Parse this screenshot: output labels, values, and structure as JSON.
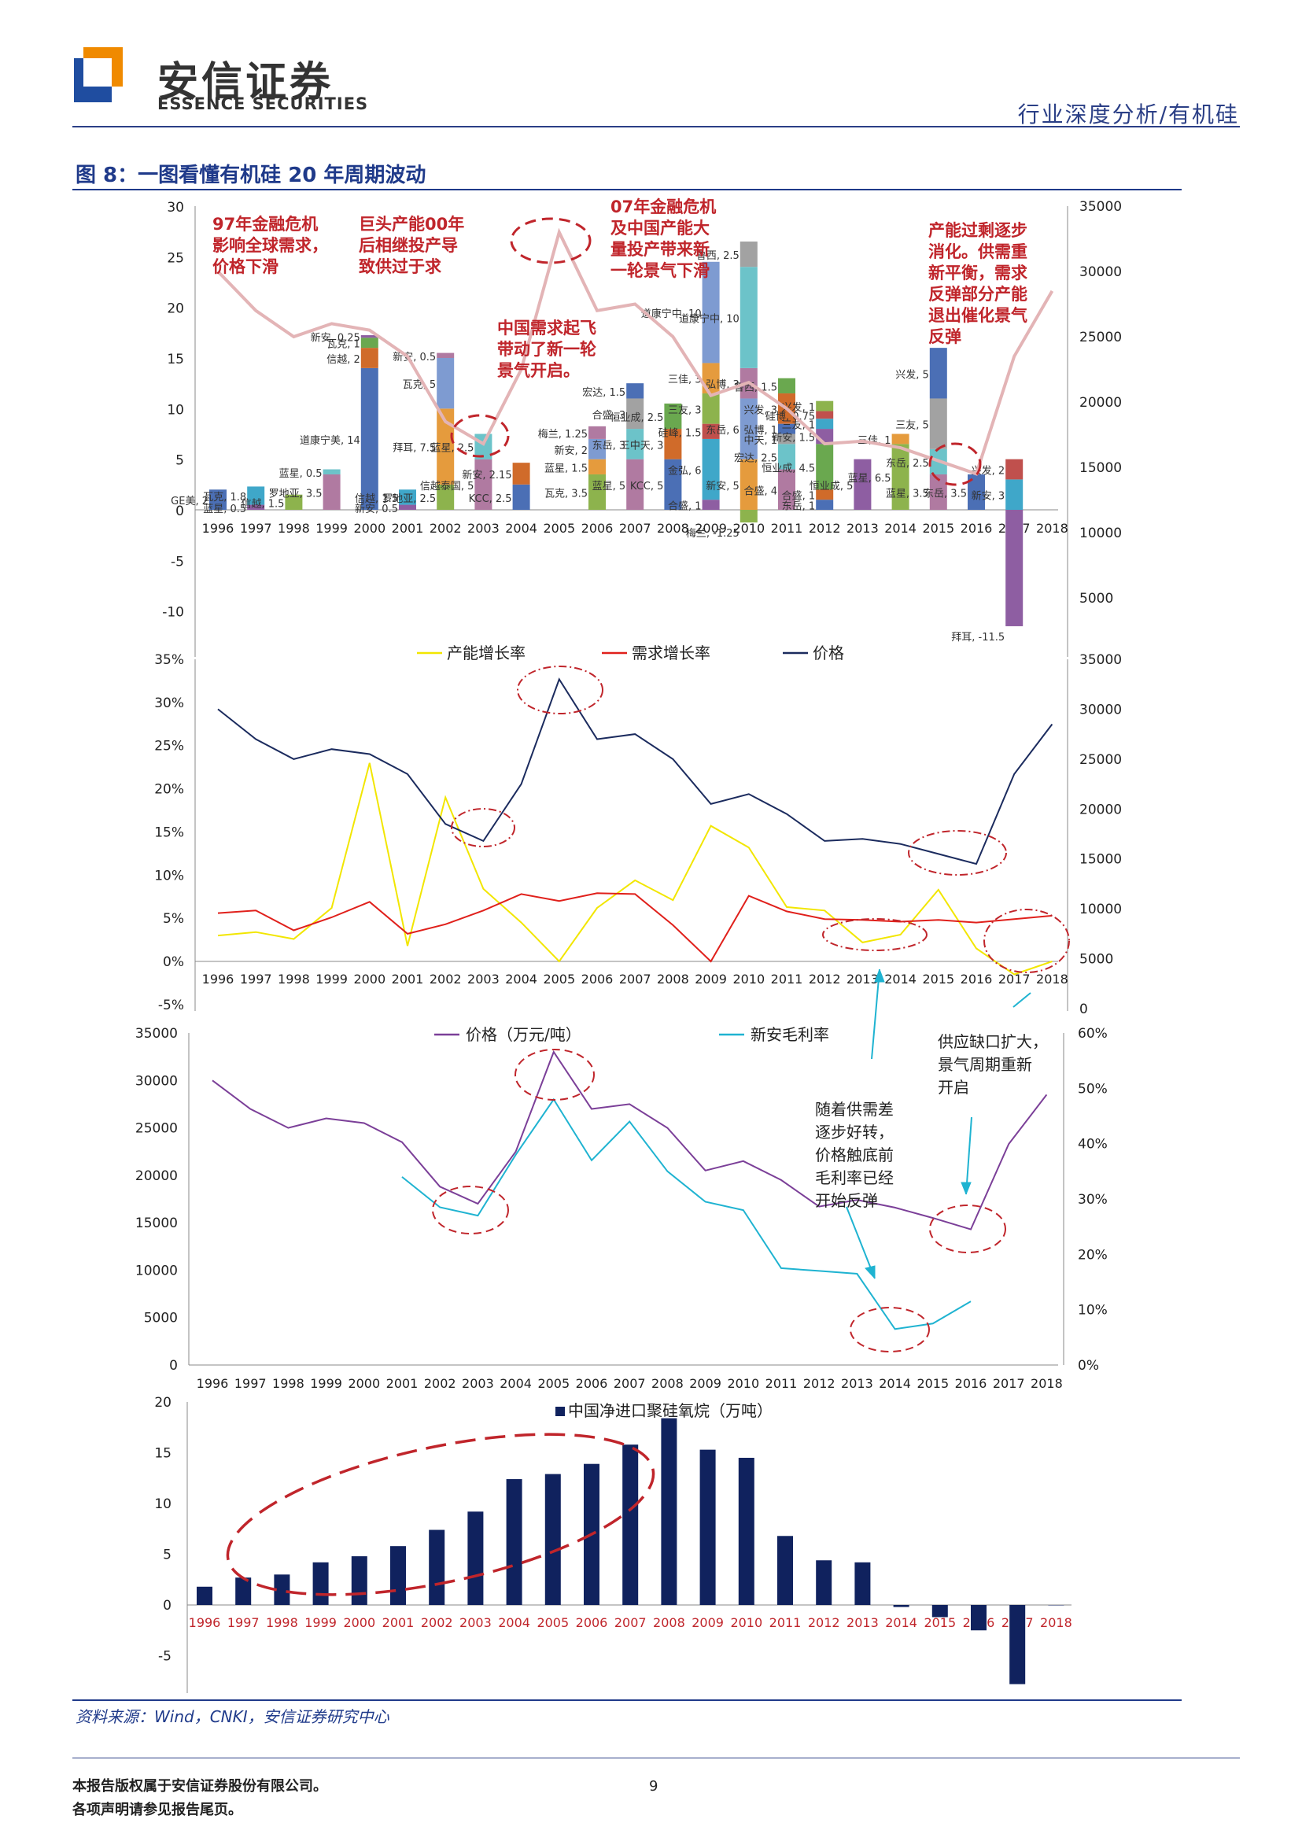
{
  "header": {
    "brand_cn": "安信证券",
    "brand_en": "ESSENCE SECURITIES",
    "category": "行业深度分析/有机硅",
    "colors": {
      "brand_blue": "#2b3f86",
      "brand_orange": "#f08a00",
      "accent_red": "#c0252b"
    }
  },
  "figure": {
    "title": "图 8：一图看懂有机硅 20 年周期波动",
    "source": "资料来源：Wind，CNKI，安信证券研究中心"
  },
  "annotations": {
    "a1": "97年金融危机\n影响全球需求，\n价格下滑",
    "a2": "巨头产能00年\n后相继投产导\n致供过于求",
    "a3": "中国需求起飞\n带动了新一轮\n景气开启。",
    "a4": "07年金融危机\n及中国产能大\n量投产带来新\n一轮景气下滑",
    "a5": "产能过剩逐步\n消化。供需重\n新平衡，需求\n反弹部分产能\n退出催化景气\n反弹",
    "n1": "随着供需差\n逐步好转，\n价格触底前\n毛利率已经\n开始反弹",
    "n2": "供应缺口扩大，\n景气周期重新\n开启"
  },
  "chart_data": [
    {
      "type": "bar",
      "stacked": true,
      "years": [
        "1996",
        "1997",
        "1998",
        "1999",
        "2000",
        "2001",
        "2002",
        "2003",
        "2004",
        "2005",
        "2006",
        "2007",
        "2008",
        "2009",
        "2010",
        "2011",
        "2012",
        "2013",
        "2014",
        "2015",
        "2016",
        "2017",
        "2018"
      ],
      "y_left_ticks": [
        "30",
        "25",
        "20",
        "15",
        "10",
        "5",
        "0",
        "-5",
        "-10"
      ],
      "y_right_ticks": [
        "35000",
        "30000",
        "25000",
        "20000",
        "15000",
        "10000",
        "5000"
      ],
      "y_left_range": [
        -11.5,
        30
      ],
      "y_right_range": [
        0,
        35000
      ],
      "price_line": [
        30000,
        27000,
        25000,
        26000,
        25500,
        23500,
        18500,
        16800,
        22500,
        33000,
        27000,
        27500,
        25000,
        20500,
        21500,
        19500,
        16800,
        17000,
        16500,
        15500,
        14500,
        23500,
        28500
      ],
      "stacks": [
        {
          "year": "1996",
          "parts": [
            {
              "label": "GE美, 2",
              "value": 2
            }
          ]
        },
        {
          "year": "1997",
          "parts": [
            {
              "label": "蓝星, 0.5",
              "value": 0.5
            },
            {
              "label": "瓦克, 1.8",
              "value": 1.8
            }
          ]
        },
        {
          "year": "1998",
          "parts": [
            {
              "label": "信越, 1.5",
              "value": 1.5
            }
          ]
        },
        {
          "year": "1999",
          "parts": [
            {
              "label": "罗地亚, 3.5",
              "value": 3.5
            },
            {
              "label": "蓝星, 0.5",
              "value": 0.5
            }
          ]
        },
        {
          "year": "2000",
          "parts": [
            {
              "label": "道康宁美, 14",
              "value": 14
            },
            {
              "label": "信越, 2",
              "value": 2
            },
            {
              "label": "瓦克, 1",
              "value": 1
            },
            {
              "label": "新安, 0.25",
              "value": 0.25
            }
          ]
        },
        {
          "year": "2001",
          "parts": [
            {
              "label": "新安, 0.5",
              "value": 0.5
            },
            {
              "label": "信越, 1.5",
              "value": 1.5
            }
          ]
        },
        {
          "year": "2002",
          "parts": [
            {
              "label": "罗地亚, 2.5",
              "value": 2.5
            },
            {
              "label": "拜耳, 7.5",
              "value": 7.5
            },
            {
              "label": "瓦克, 5",
              "value": 5
            },
            {
              "label": "新安, 0.5",
              "value": 0.5
            }
          ]
        },
        {
          "year": "2003",
          "parts": [
            {
              "label": "信越泰国, 5",
              "value": 5
            },
            {
              "label": "蓝星, 2.5",
              "value": 2.5
            }
          ]
        },
        {
          "year": "2004",
          "parts": [
            {
              "label": "KCC, 2.5",
              "value": 2.5
            },
            {
              "label": "新安, 2.15",
              "value": 2.15
            }
          ]
        },
        {
          "year": "2005",
          "parts": []
        },
        {
          "year": "2006",
          "parts": [
            {
              "label": "瓦克, 3.5",
              "value": 3.5
            },
            {
              "label": "蓝星, 1.5",
              "value": 1.5
            },
            {
              "label": "新安, 2",
              "value": 2
            },
            {
              "label": "梅兰, 1.25",
              "value": 1.25
            }
          ]
        },
        {
          "year": "2007",
          "parts": [
            {
              "label": "蓝星, 5",
              "value": 5
            },
            {
              "label": "东岳, 3",
              "value": 3
            },
            {
              "label": "合盛, 3",
              "value": 3
            },
            {
              "label": "宏达, 1.5",
              "value": 1.5
            }
          ]
        },
        {
          "year": "2008",
          "parts": [
            {
              "label": "KCC, 5",
              "value": 5
            },
            {
              "label": "三中天, 3",
              "value": 3
            },
            {
              "label": "恒业成, 2.5",
              "value": 2.5
            }
          ]
        },
        {
          "year": "2009",
          "parts": [
            {
              "label": "合盛, 1",
              "value": 1
            },
            {
              "label": "金弘, 6",
              "value": 6
            },
            {
              "label": "硅峰, 1.5",
              "value": 1.5
            },
            {
              "label": "三友, 3",
              "value": 3
            },
            {
              "label": "三佳, 3",
              "value": 3
            },
            {
              "label": "道康宁中, 10",
              "value": 10
            }
          ]
        },
        {
          "year": "2010",
          "parts": [
            {
              "label": "梅兰, -1.25",
              "value": -1.25
            },
            {
              "label": "新安, 5",
              "value": 5
            },
            {
              "label": "东岳, 6",
              "value": 6
            },
            {
              "label": "弘博, 3",
              "value": 3
            },
            {
              "label": "道康宁中, 10",
              "value": 10
            },
            {
              "label": "鲁西, 2.5",
              "value": 2.5
            }
          ]
        },
        {
          "year": "2011",
          "parts": [
            {
              "label": "合盛, 4",
              "value": 4
            },
            {
              "label": "宏达, 2.5",
              "value": 2.5
            },
            {
              "label": "中天, 1",
              "value": 1
            },
            {
              "label": "弘博, 1",
              "value": 1
            },
            {
              "label": "兴发, 3",
              "value": 3
            },
            {
              "label": "鲁西, 1.5",
              "value": 1.5
            }
          ]
        },
        {
          "year": "2012",
          "parts": [
            {
              "label": "东岳, 1",
              "value": 1
            },
            {
              "label": "合盛, 1",
              "value": 1
            },
            {
              "label": "恒业成, 4.5",
              "value": 4.5
            },
            {
              "label": "新安, 1.5",
              "value": 1.5
            },
            {
              "label": "三友, 1",
              "value": 1
            },
            {
              "label": "硅博, 0.75",
              "value": 0.75
            },
            {
              "label": "兴发, 1",
              "value": 1
            }
          ]
        },
        {
          "year": "2013",
          "parts": [
            {
              "label": "恒业成, 5",
              "value": 5
            }
          ]
        },
        {
          "year": "2014",
          "parts": [
            {
              "label": "蓝星, 6.5",
              "value": 6.5
            },
            {
              "label": "三佳, 1",
              "value": 1
            }
          ]
        },
        {
          "year": "2015",
          "parts": [
            {
              "label": "蓝星, 3.5",
              "value": 3.5
            },
            {
              "label": "东岳, 2.5",
              "value": 2.5
            },
            {
              "label": "三友, 5",
              "value": 5
            },
            {
              "label": "兴发, 5",
              "value": 5
            }
          ]
        },
        {
          "year": "2016",
          "parts": [
            {
              "label": "东岳, 3.5",
              "value": 3.5
            }
          ]
        },
        {
          "year": "2017",
          "parts": [
            {
              "label": "拜耳, -11.5",
              "value": -11.5
            },
            {
              "label": "新安, 3",
              "value": 3
            },
            {
              "label": "兴发, 2",
              "value": 2
            }
          ]
        },
        {
          "year": "2018",
          "parts": []
        }
      ]
    },
    {
      "type": "line",
      "legend": [
        "产能增长率",
        "需求增长率",
        "价格"
      ],
      "x": [
        "1996",
        "1997",
        "1998",
        "1999",
        "2000",
        "2001",
        "2002",
        "2003",
        "2004",
        "2005",
        "2006",
        "2007",
        "2008",
        "2009",
        "2010",
        "2011",
        "2012",
        "2013",
        "2014",
        "2015",
        "2016",
        "2017",
        "2018"
      ],
      "y_left_ticks": [
        "35%",
        "30%",
        "25%",
        "20%",
        "15%",
        "10%",
        "5%",
        "0%",
        "-5%"
      ],
      "y_left_range": [
        -5,
        35
      ],
      "y_right_ticks": [
        "35000",
        "30000",
        "25000",
        "20000",
        "15000",
        "10000",
        "5000",
        "0"
      ],
      "y_right_range": [
        0,
        35000
      ],
      "series": [
        {
          "name": "产能增长率",
          "axis": "left",
          "color": "#f2e600",
          "values": [
            3.0,
            3.4,
            2.6,
            6.2,
            23.0,
            1.8,
            19.0,
            8.4,
            4.5,
            0.0,
            6.2,
            9.4,
            7.1,
            15.7,
            13.2,
            6.3,
            5.9,
            2.2,
            3.1,
            8.3,
            1.5,
            -1.5,
            0.0
          ]
        },
        {
          "name": "需求增长率",
          "axis": "left",
          "color": "#e0201b",
          "values": [
            5.6,
            5.9,
            3.6,
            5.1,
            6.9,
            3.2,
            4.3,
            5.9,
            7.8,
            7.0,
            7.9,
            7.8,
            4.2,
            0.0,
            7.6,
            5.8,
            4.9,
            4.8,
            4.6,
            4.8,
            4.5,
            4.9,
            5.3
          ]
        },
        {
          "name": "价格",
          "axis": "right",
          "color": "#1b2b5e",
          "values": [
            30000,
            27000,
            25000,
            26000,
            25500,
            23500,
            18500,
            16800,
            22500,
            33000,
            27000,
            27500,
            25000,
            20500,
            21500,
            19500,
            16800,
            17000,
            16500,
            15500,
            14500,
            23500,
            28500
          ]
        }
      ]
    },
    {
      "type": "line",
      "legend": [
        "价格（万元/吨）",
        "新安毛利率"
      ],
      "x": [
        "1996",
        "1997",
        "1998",
        "1999",
        "2000",
        "2001",
        "2002",
        "2003",
        "2004",
        "2005",
        "2006",
        "2007",
        "2008",
        "2009",
        "2010",
        "2011",
        "2012",
        "2013",
        "2014",
        "2015",
        "2016",
        "2017",
        "2018"
      ],
      "y_left_ticks": [
        "35000",
        "30000",
        "25000",
        "20000",
        "15000",
        "10000",
        "5000",
        "0"
      ],
      "y_left_range": [
        0,
        35000
      ],
      "y_right_ticks": [
        "60%",
        "50%",
        "40%",
        "30%",
        "20%",
        "10%",
        "0%"
      ],
      "y_right_range": [
        0,
        60
      ],
      "series": [
        {
          "name": "价格（万元/吨）",
          "axis": "left",
          "color": "#7b3f98",
          "values": [
            30000,
            27000,
            25000,
            26000,
            25500,
            23500,
            18800,
            17000,
            22500,
            33000,
            27000,
            27500,
            25000,
            20500,
            21500,
            19500,
            16700,
            17400,
            16600,
            15500,
            14300,
            23300,
            28500
          ]
        },
        {
          "name": "新安毛利率",
          "axis": "right",
          "color": "#1fb3d1",
          "values": [
            null,
            null,
            null,
            null,
            null,
            34.0,
            28.5,
            27.0,
            38.0,
            48.0,
            37.0,
            44.0,
            35.0,
            29.5,
            28.0,
            17.5,
            17.0,
            16.5,
            6.5,
            7.5,
            11.5,
            null,
            null
          ]
        }
      ]
    },
    {
      "type": "bar",
      "legend": [
        "中国净进口聚硅氧烷（万吨）"
      ],
      "categories": [
        "1996",
        "1997",
        "1998",
        "1999",
        "2000",
        "2001",
        "2002",
        "2003",
        "2004",
        "2005",
        "2006",
        "2007",
        "2008",
        "2009",
        "2010",
        "2011",
        "2012",
        "2013",
        "2014",
        "2015",
        "2016",
        "2017",
        "2018"
      ],
      "values": [
        1.8,
        2.7,
        3.0,
        4.2,
        4.8,
        5.8,
        7.4,
        9.2,
        12.4,
        12.9,
        13.9,
        15.8,
        18.4,
        15.3,
        14.5,
        6.8,
        4.4,
        4.2,
        -0.2,
        -1.2,
        -2.5,
        -7.8,
        0
      ],
      "y_ticks": [
        "20",
        "15",
        "10",
        "5",
        "0",
        "-5"
      ],
      "ylim": [
        -8,
        20
      ],
      "color": "#10225e"
    }
  ],
  "footer": {
    "line1": "本报告版权属于安信证券股份有限公司。",
    "line2": "各项声明请参见报告尾页。",
    "page": "9"
  }
}
